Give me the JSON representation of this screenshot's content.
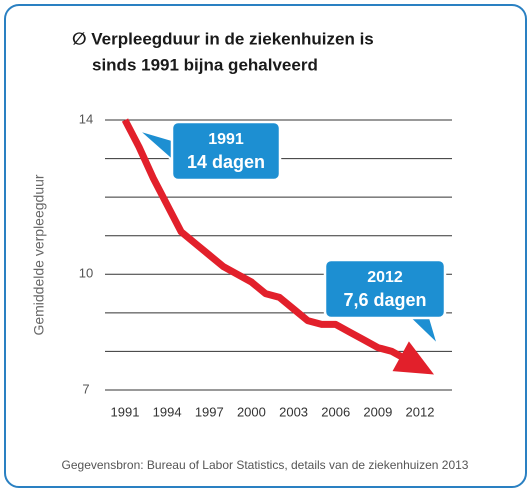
{
  "chart_data": {
    "type": "line",
    "title": [
      "∅ Verpleegduur in de ziekenhuizen is",
      "sinds 1991 bijna gehalveerd"
    ],
    "ylabel": "Gemiddelde verpleegduur",
    "x": [
      1991,
      1992,
      1993,
      1994,
      1995,
      1996,
      1997,
      1998,
      1999,
      2000,
      2001,
      2002,
      2003,
      2004,
      2005,
      2006,
      2007,
      2008,
      2009,
      2010,
      2011,
      2012
    ],
    "series": [
      {
        "name": "Gemiddelde verpleegduur",
        "color": "#e2202b",
        "values": [
          14,
          13.3,
          12.5,
          11.8,
          11.1,
          10.8,
          10.5,
          10.2,
          10.0,
          9.8,
          9.5,
          9.4,
          9.1,
          8.8,
          8.7,
          8.7,
          8.5,
          8.3,
          8.1,
          8.0,
          7.8,
          7.6
        ]
      }
    ],
    "xlim": [
      1991,
      2012
    ],
    "xticks": [
      1991,
      1994,
      1997,
      2000,
      2003,
      2006,
      2009,
      2012
    ],
    "ylim": [
      7,
      14
    ],
    "yticks": [
      7,
      10,
      14
    ],
    "minor_yticks": [
      8,
      9,
      11,
      12,
      13
    ],
    "grid": true,
    "annotations": [
      {
        "title": "1991",
        "text": "14 dagen"
      },
      {
        "title": "2012",
        "text": "7,6 dagen"
      }
    ],
    "source": "Gegevensbron: Bureau of Labor Statistics, details van de ziekenhuizen 2013"
  }
}
